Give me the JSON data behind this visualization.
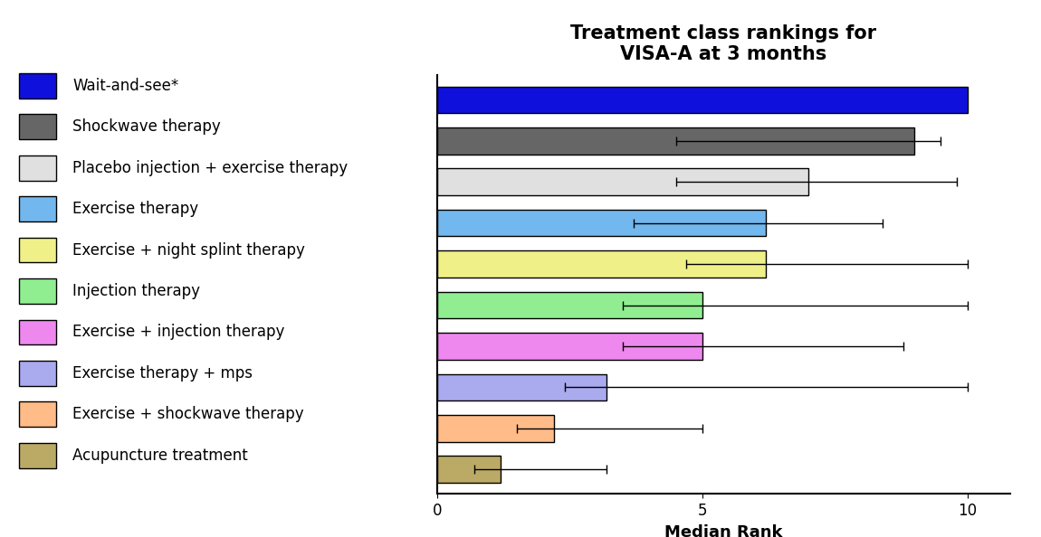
{
  "title": "Treatment class rankings for\nVISA-A at 3 months",
  "xlabel": "Median Rank",
  "categories": [
    "Wait-and-see*",
    "Shockwave therapy",
    "Placebo injection + exercise therapy",
    "Exercise therapy",
    "Exercise + night splint therapy",
    "Injection therapy",
    "Exercise + injection therapy",
    "Exercise therapy + mps",
    "Exercise + shockwave therapy",
    "Acupuncture treatment"
  ],
  "values": [
    10.0,
    9.0,
    7.0,
    6.2,
    6.2,
    5.0,
    5.0,
    3.2,
    2.2,
    1.2
  ],
  "error_low": [
    0.0,
    4.5,
    2.5,
    2.5,
    1.5,
    1.5,
    1.5,
    0.8,
    0.7,
    0.5
  ],
  "error_high": [
    0.0,
    0.5,
    2.8,
    2.2,
    3.8,
    5.0,
    3.8,
    6.8,
    2.8,
    2.0
  ],
  "bar_colors": [
    "#1010DD",
    "#666666",
    "#E0E0E0",
    "#72B8EE",
    "#F0F088",
    "#90EE90",
    "#EE88EE",
    "#AAAAEE",
    "#FFBB88",
    "#BBAA66"
  ],
  "xlim": [
    0,
    10.8
  ],
  "xticks": [
    0,
    5,
    10
  ],
  "background_color": "#ffffff",
  "title_fontsize": 15,
  "label_fontsize": 13,
  "tick_fontsize": 12,
  "legend_fontsize": 12,
  "bar_height": 0.65
}
